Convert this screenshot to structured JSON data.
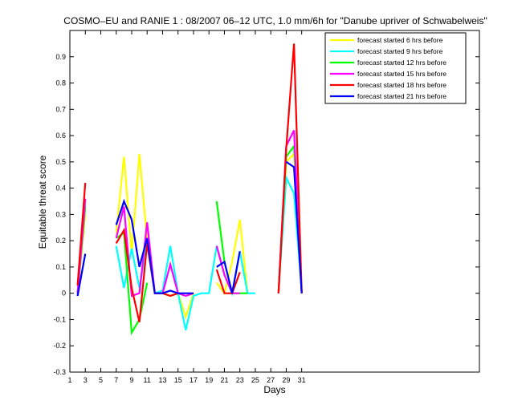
{
  "chart_data": {
    "type": "line",
    "title": "COSMO–EU and RANIE 1 : 08/2007 06–12 UTC, 1.0 mm/6h for \"Danube upriver of Schwabelweis\"",
    "xlabel": "Days",
    "ylabel": "Equitable threat score",
    "xlim": [
      1,
      54
    ],
    "ylim": [
      -0.3,
      1.0
    ],
    "xticks": [
      1,
      3,
      5,
      7,
      9,
      11,
      13,
      15,
      17,
      19,
      21,
      23,
      25,
      27,
      29,
      31
    ],
    "yticks": [
      -0.3,
      -0.2,
      -0.1,
      0,
      0.1,
      0.2,
      0.3,
      0.4,
      0.5,
      0.6,
      0.7,
      0.8,
      0.9
    ],
    "ytick_labels": [
      "-0.3",
      "-0.2",
      "-0.1",
      "0",
      "0.1",
      "0.2",
      "0.3",
      "0.4",
      "0.5",
      "0.6",
      "0.7",
      "0.8",
      "0.9"
    ],
    "legend_position": "top-right",
    "grid": false,
    "series": [
      {
        "name": "forecast started  6 hrs before",
        "color": "#ffff00",
        "points": [
          [
            2,
            0.0
          ],
          [
            3,
            0.3
          ],
          null,
          [
            7,
            0.23
          ],
          [
            8,
            0.52
          ],
          [
            9,
            0.15
          ],
          [
            10,
            0.53
          ],
          [
            11,
            0.2
          ],
          [
            12,
            0.0
          ],
          [
            13,
            0.0
          ],
          [
            14,
            -0.01
          ],
          [
            15,
            0.0
          ],
          [
            16,
            -0.09
          ],
          [
            17,
            0.0
          ],
          null,
          [
            20,
            0.04
          ],
          [
            21,
            0.0
          ],
          [
            22,
            0.12
          ],
          [
            23,
            0.28
          ],
          [
            24,
            0.0
          ],
          null,
          [
            28,
            0.0
          ],
          [
            29,
            0.5
          ],
          [
            30,
            0.53
          ],
          [
            31,
            0.02
          ]
        ]
      },
      {
        "name": "forecast started  9 hrs before",
        "color": "#00ffff",
        "points": [
          [
            2,
            -0.01
          ],
          [
            3,
            0.34
          ],
          null,
          [
            7,
            0.18
          ],
          [
            8,
            0.02
          ],
          [
            9,
            0.17
          ],
          [
            10,
            0.02
          ],
          [
            11,
            0.19
          ],
          [
            12,
            0.0
          ],
          [
            13,
            0.01
          ],
          [
            14,
            0.18
          ],
          [
            15,
            0.0
          ],
          [
            16,
            -0.14
          ],
          [
            17,
            -0.01
          ],
          [
            18,
            0.0
          ],
          [
            19,
            0.0
          ],
          [
            20,
            0.18
          ],
          [
            21,
            0.07
          ],
          [
            22,
            0.0
          ],
          [
            23,
            0.16
          ],
          [
            24,
            0.0
          ],
          [
            25,
            0.0
          ],
          null,
          [
            28,
            0.0
          ],
          [
            29,
            0.44
          ],
          [
            30,
            0.38
          ],
          [
            31,
            0.01
          ]
        ]
      },
      {
        "name": "forecast started 12 hrs before",
        "color": "#00ff00",
        "points": [
          [
            2,
            0.0
          ],
          [
            3,
            0.33
          ],
          null,
          [
            7,
            0.21
          ],
          [
            8,
            0.23
          ],
          [
            9,
            -0.15
          ],
          [
            10,
            -0.1
          ],
          [
            11,
            0.04
          ],
          null,
          [
            13,
            0.0
          ],
          [
            14,
            -0.01
          ],
          [
            15,
            0.0
          ],
          [
            16,
            -0.01
          ],
          [
            17,
            0.0
          ],
          null,
          [
            20,
            0.35
          ],
          [
            21,
            0.12
          ],
          [
            22,
            0.0
          ],
          [
            23,
            0.0
          ],
          [
            24,
            0.0
          ],
          null,
          [
            28,
            0.0
          ],
          [
            29,
            0.52
          ],
          [
            30,
            0.56
          ],
          [
            31,
            0.0
          ]
        ]
      },
      {
        "name": "forecast started 15 hrs before",
        "color": "#ff00ff",
        "points": [
          [
            2,
            0.0
          ],
          [
            3,
            0.36
          ],
          null,
          [
            7,
            0.21
          ],
          [
            8,
            0.33
          ],
          [
            9,
            -0.01
          ],
          [
            10,
            0.0
          ],
          [
            11,
            0.27
          ],
          [
            12,
            0.0
          ],
          [
            13,
            0.0
          ],
          [
            14,
            0.11
          ],
          [
            15,
            0.0
          ],
          [
            16,
            -0.01
          ],
          [
            17,
            0.0
          ],
          null,
          [
            20,
            0.18
          ],
          [
            21,
            0.07
          ],
          [
            22,
            0.0
          ],
          [
            23,
            0.0
          ],
          null,
          [
            28,
            0.0
          ],
          [
            29,
            0.56
          ],
          [
            30,
            0.62
          ],
          [
            31,
            0.0
          ]
        ]
      },
      {
        "name": "forecast started 18 hrs before",
        "color": "#ff0000",
        "points": [
          [
            2,
            0.03
          ],
          [
            3,
            0.42
          ],
          null,
          [
            7,
            0.19
          ],
          [
            8,
            0.24
          ],
          [
            9,
            0.02
          ],
          [
            10,
            -0.11
          ],
          [
            11,
            0.19
          ],
          [
            12,
            0.0
          ],
          [
            13,
            0.0
          ],
          [
            14,
            -0.01
          ],
          [
            15,
            0.0
          ],
          null,
          [
            20,
            0.09
          ],
          [
            21,
            0.0
          ],
          [
            22,
            0.0
          ],
          [
            23,
            0.08
          ],
          null,
          [
            28,
            0.0
          ],
          [
            29,
            0.55
          ],
          [
            30,
            0.95
          ],
          [
            31,
            0.0
          ]
        ]
      },
      {
        "name": "forecast started 21 hrs before",
        "color": "#0000ff",
        "points": [
          [
            2,
            -0.01
          ],
          [
            3,
            0.15
          ],
          null,
          [
            7,
            0.26
          ],
          [
            8,
            0.35
          ],
          [
            9,
            0.28
          ],
          [
            10,
            0.1
          ],
          [
            11,
            0.21
          ],
          [
            12,
            0.0
          ],
          [
            13,
            0.0
          ],
          [
            14,
            0.01
          ],
          [
            15,
            0.0
          ],
          [
            16,
            0.0
          ],
          [
            17,
            0.0
          ],
          null,
          [
            20,
            0.1
          ],
          [
            21,
            0.12
          ],
          [
            22,
            0.0
          ],
          [
            23,
            0.16
          ],
          null,
          [
            29,
            0.5
          ],
          [
            30,
            0.48
          ],
          [
            31,
            0.0
          ]
        ]
      }
    ]
  }
}
